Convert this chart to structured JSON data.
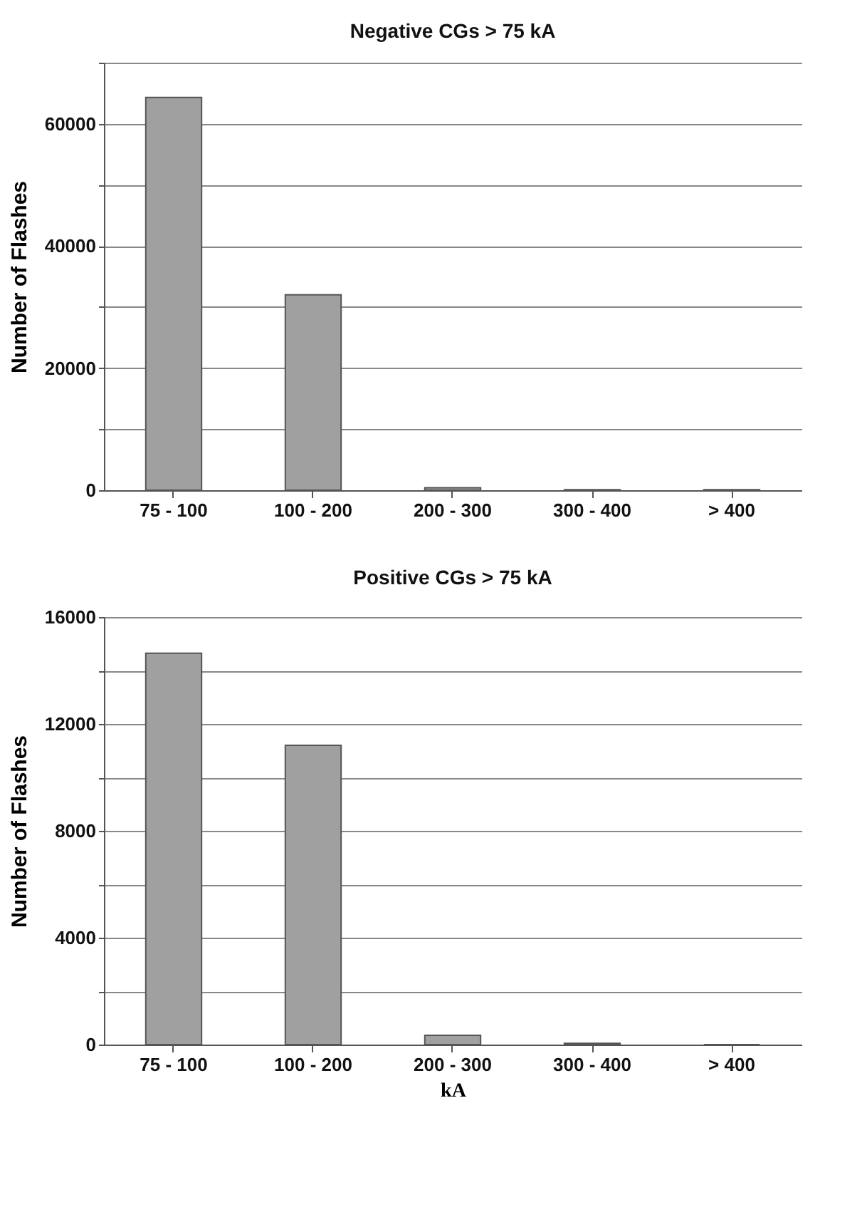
{
  "chart_data": [
    {
      "type": "bar",
      "title": "Negative CGs > 75 kA",
      "ylabel": "Number of Flashes",
      "categories": [
        "75 - 100",
        "100 - 200",
        "200 - 300",
        "300 - 400",
        "> 400"
      ],
      "values": [
        64300,
        32000,
        400,
        100,
        100
      ],
      "color": "#a0a0a0",
      "ylim": [
        0,
        70000
      ],
      "yticks": [
        0,
        {
          "value": 10000,
          "label": null
        },
        20000,
        {
          "value": 30000,
          "label": null
        },
        40000,
        {
          "value": 50000,
          "label": null
        },
        60000,
        {
          "value": 70000,
          "label": null
        }
      ],
      "grid": "y"
    },
    {
      "type": "bar",
      "title": "Positive CGs > 75 kA",
      "xlabel": "kA",
      "ylabel": "Number of Flashes",
      "categories": [
        "75 - 100",
        "100 - 200",
        "200 - 300",
        "300 - 400",
        "> 400"
      ],
      "values": [
        14650,
        11200,
        350,
        50,
        0
      ],
      "color": "#a0a0a0",
      "ylim": [
        0,
        16000
      ],
      "yticks": [
        0,
        {
          "value": 2000,
          "label": null
        },
        4000,
        {
          "value": 6000,
          "label": null
        },
        8000,
        {
          "value": 10000,
          "label": null
        },
        12000,
        {
          "value": 14000,
          "label": null
        },
        16000
      ],
      "grid": "y"
    }
  ]
}
